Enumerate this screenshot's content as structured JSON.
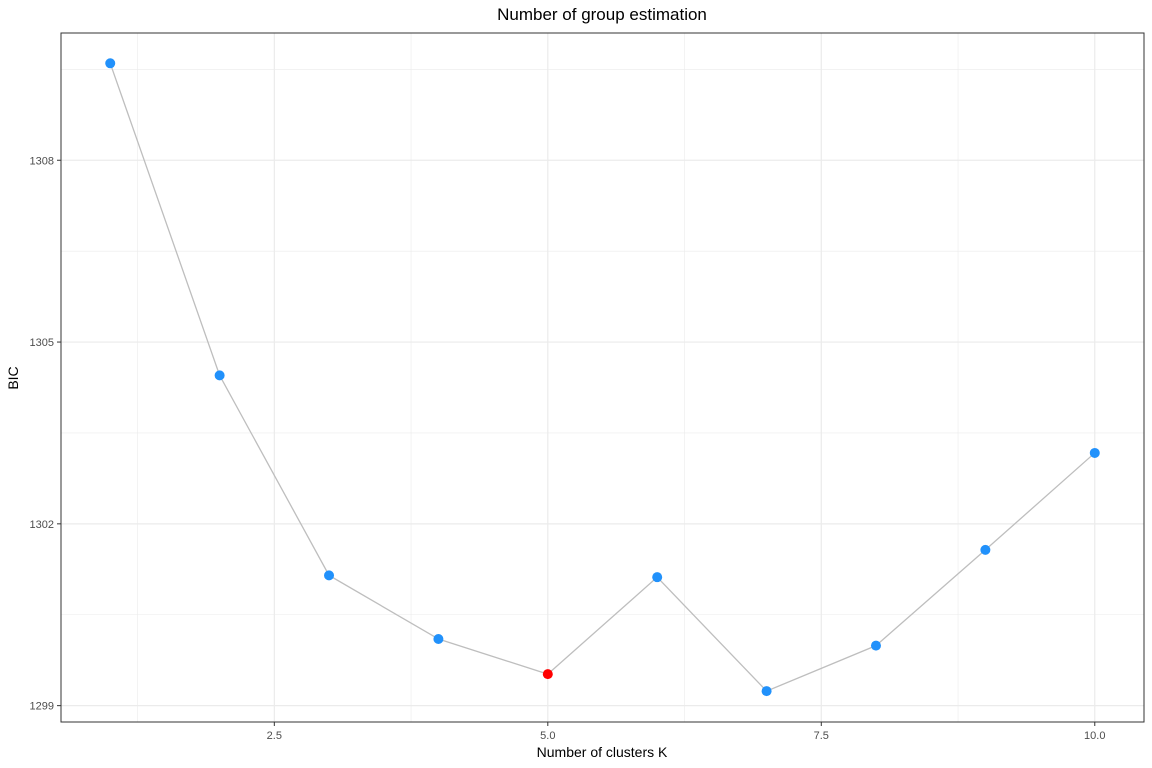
{
  "chart_data": {
    "type": "line",
    "title": "Number of group estimation",
    "xlabel": "Number of clusters K",
    "ylabel": "BIC",
    "x": [
      1,
      2,
      3,
      4,
      5,
      6,
      7,
      8,
      9,
      10
    ],
    "series": [
      {
        "values": [
          1309.6,
          1304.45,
          1301.15,
          1300.1,
          1299.52,
          1301.12,
          1299.24,
          1299.99,
          1301.57,
          1303.17
        ]
      }
    ],
    "highlight": {
      "x": 5,
      "y": 1299.52
    },
    "xlim": [
      0.55,
      10.45
    ],
    "ylim": [
      1298.73,
      1310.1
    ],
    "x_ticks": [
      2.5,
      5.0,
      7.5,
      10.0
    ],
    "x_tick_labels": [
      "2.5",
      "5.0",
      "7.5",
      "10.0"
    ],
    "y_ticks": [
      1299,
      1302,
      1305,
      1308
    ],
    "y_tick_labels": [
      "1299",
      "1302",
      "1305",
      "1308"
    ],
    "grid": true,
    "legend": "none",
    "colors": {
      "point": "#2191fb",
      "highlight_point": "#ff0000",
      "line": "#bebebe",
      "grid": "#ebebeb",
      "panel_border": "#333333"
    }
  }
}
